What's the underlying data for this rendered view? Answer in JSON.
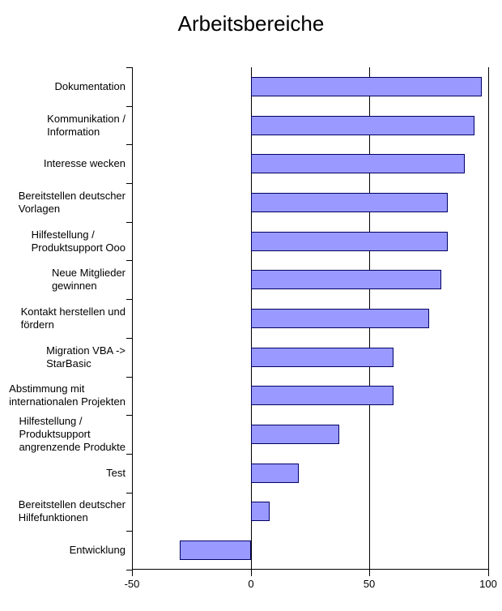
{
  "chart_data": {
    "type": "bar",
    "orientation": "horizontal",
    "title": "Arbeitsbereiche",
    "categories": [
      "Dokumentation",
      "Kommunikation / Information",
      "Interesse wecken",
      "Bereitstellen deutscher Vorlagen",
      "Hilfestellung / Produktsupport Ooo",
      "Neue Mitglieder gewinnen",
      "Kontakt herstellen und fördern",
      "Migration VBA -> StarBasic",
      "Abstimmung mit internationalen Projekten",
      "Hilfestellung / Produktsupport angrenzende Produkte",
      "Test",
      "Bereitstellen deutscher Hilfefunktionen",
      "Entwicklung"
    ],
    "category_label_lines": [
      [
        "Dokumentation"
      ],
      [
        "Kommunikation /",
        "Information"
      ],
      [
        "Interesse wecken"
      ],
      [
        "Bereitstellen deutscher",
        "Vorlagen"
      ],
      [
        "Hilfestellung /",
        "Produktsupport Ooo"
      ],
      [
        "Neue Mitglieder",
        "gewinnen"
      ],
      [
        "Kontakt herstellen und",
        "fördern"
      ],
      [
        "Migration VBA ->",
        "StarBasic"
      ],
      [
        "Abstimmung mit",
        "internationalen Projekten"
      ],
      [
        "Hilfestellung /",
        "Produktsupport",
        "angrenzende Produkte"
      ],
      [
        "Test"
      ],
      [
        "Bereitstellen deutscher",
        "Hilfefunktionen"
      ],
      [
        "Entwicklung"
      ]
    ],
    "values": [
      97,
      94,
      90,
      83,
      83,
      80,
      75,
      60,
      60,
      37,
      20,
      8,
      -30
    ],
    "xlim": [
      -50,
      100
    ],
    "x_ticks": [
      -50,
      0,
      50,
      100
    ],
    "x_tick_labels": [
      "-50",
      "0",
      "50",
      "100"
    ],
    "gridlines_at": [
      0,
      50,
      100
    ],
    "grid": true,
    "legend": "none",
    "colors": {
      "bar_fill": "#9999FF",
      "bar_border": "#000066",
      "axis": "#000000",
      "background": "#FFFFFF",
      "text": "#000000"
    }
  }
}
